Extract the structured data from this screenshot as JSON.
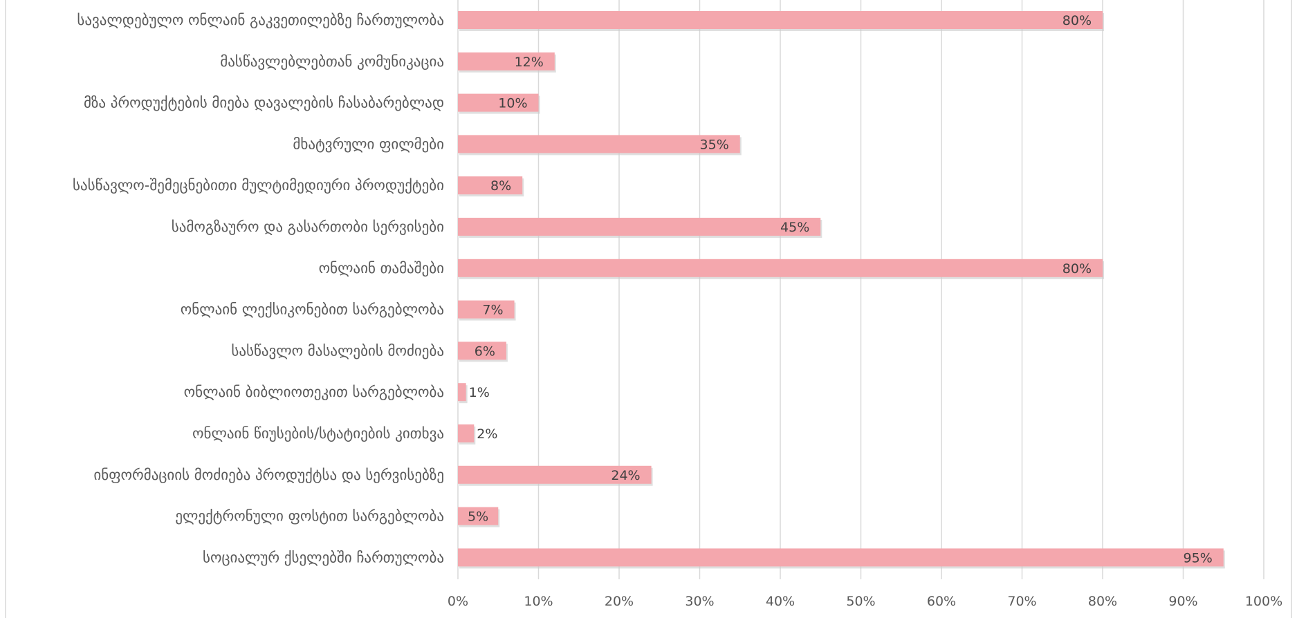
{
  "chart_data": {
    "type": "bar",
    "orientation": "horizontal",
    "title": "",
    "xlabel": "",
    "ylabel": "",
    "xlim": [
      0,
      100
    ],
    "grid": true,
    "legend": "none",
    "bar_color": "#f4a7ad",
    "tick_labels": [
      "0%",
      "10%",
      "20%",
      "30%",
      "40%",
      "50%",
      "60%",
      "70%",
      "80%",
      "90%",
      "100%"
    ],
    "categories": [
      "სავალდებულო ონლაინ გაკვეთილებზე ჩართულობა",
      "მასწავლებლებთან კომუნიკაცია",
      "მზა პროდუქტების მიება დავალების ჩასაბარებლად",
      "მხატვრული ფილმები",
      "სასწავლო-შემეცნებითი მულტიმედიური პროდუქტები",
      "სამოგზაურო და გასართობი სერვისები",
      "ონლაინ თამაშები",
      "ონლაინ ლექსიკონებით სარგებლობა",
      "სასწავლო მასალების მოძიება",
      "ონლაინ ბიბლიოთეკით სარგებლობა",
      "ონლაინ წიუსების/სტატიების კითხვა",
      "ინფორმაციის მოძიება პროდუქტსა და სერვისებზე",
      "ელექტრონული ფოსტით სარგებლობა",
      "სოციალურ ქსელებში ჩართულობა"
    ],
    "values": [
      80,
      12,
      10,
      35,
      8,
      45,
      80,
      7,
      6,
      1,
      2,
      24,
      5,
      95
    ],
    "data_labels": [
      "80%",
      "12%",
      "10%",
      "35%",
      "8%",
      "45%",
      "80%",
      "7%",
      "6%",
      "1%",
      "2%",
      "24%",
      "5%",
      "95%"
    ]
  }
}
